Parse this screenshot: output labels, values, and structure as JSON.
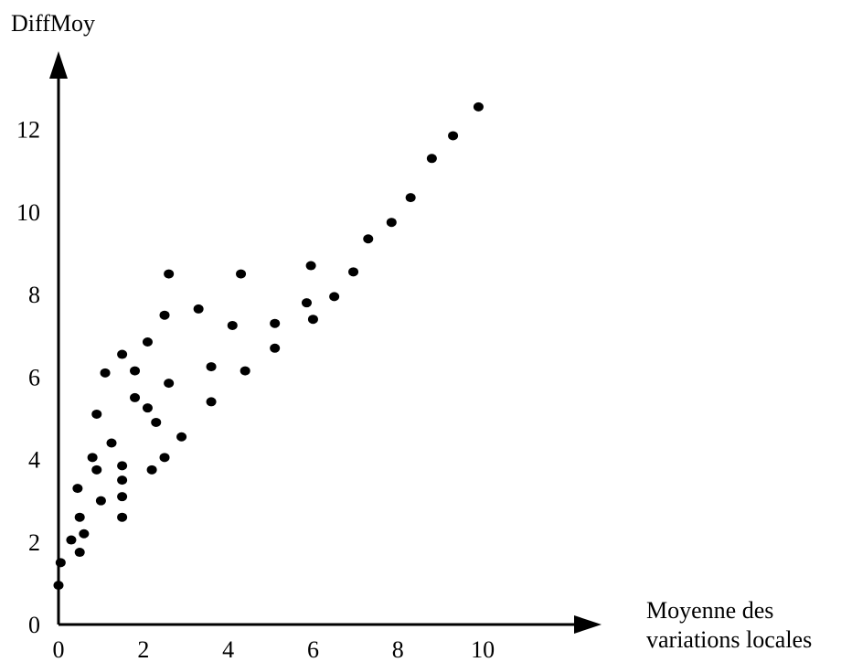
{
  "chart_data": {
    "type": "scatter",
    "ylabel": "DiffMoy",
    "xlabel_lines": [
      "Moyenne des",
      "variations locales"
    ],
    "xlim": [
      0,
      12.8
    ],
    "ylim": [
      0,
      13.9
    ],
    "x_ticks": [
      0,
      2,
      4,
      6,
      8,
      10
    ],
    "x_tick_labels": [
      "0",
      "2",
      "4",
      "6",
      "8",
      "10"
    ],
    "y_ticks": [
      0,
      2,
      4,
      6,
      8,
      10,
      12
    ],
    "y_tick_labels": [
      "0",
      "2",
      "4",
      "6",
      "8",
      "10",
      "12"
    ],
    "grid": false,
    "legend": "none",
    "point_color": "#000000",
    "series": [
      {
        "points": [
          [
            0.0,
            0.95
          ],
          [
            0.05,
            1.5
          ],
          [
            0.3,
            2.05
          ],
          [
            0.5,
            1.75
          ],
          [
            0.6,
            2.2
          ],
          [
            0.5,
            2.6
          ],
          [
            0.45,
            3.3
          ],
          [
            1.0,
            3.0
          ],
          [
            0.9,
            3.75
          ],
          [
            0.8,
            4.05
          ],
          [
            0.9,
            5.1
          ],
          [
            1.25,
            4.4
          ],
          [
            1.1,
            6.1
          ],
          [
            1.5,
            6.55
          ],
          [
            1.5,
            3.85
          ],
          [
            1.5,
            3.5
          ],
          [
            1.5,
            3.1
          ],
          [
            1.5,
            2.6
          ],
          [
            1.8,
            5.5
          ],
          [
            1.8,
            6.15
          ],
          [
            2.1,
            5.25
          ],
          [
            2.1,
            6.85
          ],
          [
            2.2,
            3.75
          ],
          [
            2.3,
            4.9
          ],
          [
            2.5,
            4.05
          ],
          [
            2.5,
            7.5
          ],
          [
            2.6,
            5.85
          ],
          [
            2.6,
            8.5
          ],
          [
            2.9,
            4.55
          ],
          [
            3.3,
            7.65
          ],
          [
            3.6,
            6.25
          ],
          [
            3.6,
            5.4
          ],
          [
            4.1,
            7.25
          ],
          [
            4.3,
            8.5
          ],
          [
            4.4,
            6.15
          ],
          [
            5.1,
            7.3
          ],
          [
            5.1,
            6.7
          ],
          [
            5.85,
            7.8
          ],
          [
            5.95,
            8.7
          ],
          [
            6.0,
            7.4
          ],
          [
            6.5,
            7.95
          ],
          [
            6.95,
            8.55
          ],
          [
            7.3,
            9.35
          ],
          [
            7.85,
            9.75
          ],
          [
            8.3,
            10.35
          ],
          [
            8.8,
            11.3
          ],
          [
            9.3,
            11.85
          ],
          [
            9.9,
            12.55
          ]
        ]
      }
    ]
  }
}
